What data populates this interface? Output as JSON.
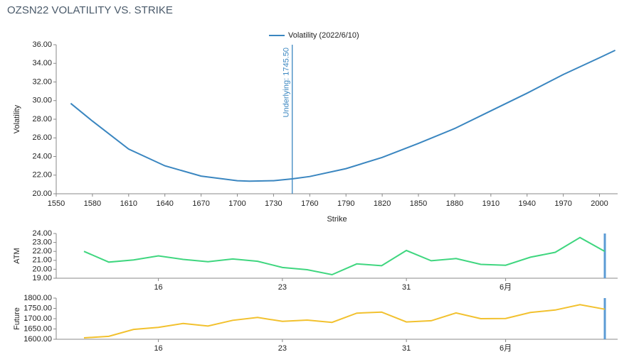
{
  "chart_data": [
    {
      "type": "line",
      "title": "OZSN22 VOLATILITY VS. STRIKE",
      "x_label": "Strike",
      "y_label": "Volatility",
      "x": [
        1562,
        1580,
        1610,
        1640,
        1670,
        1700,
        1710,
        1730,
        1745.5,
        1760,
        1790,
        1820,
        1850,
        1880,
        1910,
        1940,
        1970,
        2000,
        2013
      ],
      "series": [
        {
          "name": "Volatility (2022/6/10)",
          "color": "#3a86c0",
          "values": [
            29.7,
            27.8,
            24.8,
            23.0,
            21.9,
            21.4,
            21.35,
            21.4,
            21.6,
            21.85,
            22.7,
            23.9,
            25.4,
            27.0,
            28.9,
            30.8,
            32.8,
            34.6,
            35.4
          ]
        }
      ],
      "underlying": 1745.5,
      "underlying_label": "Underlying: 1745.50",
      "xlim": [
        1550,
        2015
      ],
      "xticks": [
        1550,
        1580,
        1610,
        1640,
        1670,
        1700,
        1730,
        1760,
        1790,
        1820,
        1850,
        1880,
        1910,
        1940,
        1970,
        2000
      ],
      "ylim": [
        20,
        36
      ],
      "yticks": [
        {
          "value": 20,
          "label": "20.00"
        },
        {
          "value": 22,
          "label": "22.00"
        },
        {
          "value": 24,
          "label": "24.00"
        },
        {
          "value": 26,
          "label": "26.00"
        },
        {
          "value": 28,
          "label": "28.00"
        },
        {
          "value": 30,
          "label": "30.00"
        },
        {
          "value": 32,
          "label": "32.00"
        },
        {
          "value": 34,
          "label": "34.00"
        },
        {
          "value": 36,
          "label": "36.00"
        }
      ],
      "legend": "top"
    },
    {
      "type": "line",
      "y_label": "ATM",
      "categories": [
        null,
        null,
        null,
        "16",
        null,
        null,
        null,
        null,
        "23",
        null,
        null,
        null,
        null,
        "31",
        null,
        null,
        null,
        "6月",
        null,
        null,
        null,
        null
      ],
      "series": [
        {
          "name": "ATM",
          "color": "#3fd67f",
          "values": [
            22.0,
            20.8,
            21.05,
            21.5,
            21.1,
            20.85,
            21.15,
            20.9,
            20.2,
            19.95,
            19.4,
            20.6,
            20.4,
            22.1,
            20.95,
            21.2,
            20.55,
            20.45,
            21.35,
            21.9,
            23.55,
            22.0
          ]
        }
      ],
      "ylim": [
        19,
        24
      ],
      "yticks": [
        {
          "value": 19,
          "label": "19.00"
        },
        {
          "value": 20,
          "label": "20.00"
        },
        {
          "value": 21,
          "label": "21.00"
        },
        {
          "value": 22,
          "label": "22.00"
        },
        {
          "value": 23,
          "label": "23.00"
        },
        {
          "value": 24,
          "label": "24.00"
        }
      ]
    },
    {
      "type": "line",
      "y_label": "Future",
      "categories": [
        null,
        null,
        null,
        "16",
        null,
        null,
        null,
        null,
        "23",
        null,
        null,
        null,
        null,
        "31",
        null,
        null,
        null,
        "6月",
        null,
        null,
        null,
        null
      ],
      "series": [
        {
          "name": "Future",
          "color": "#f2c12e",
          "values": [
            1607,
            1614,
            1648,
            1658,
            1677,
            1664,
            1692,
            1706,
            1687,
            1693,
            1682,
            1727,
            1732,
            1684,
            1690,
            1728,
            1700,
            1701,
            1730,
            1742,
            1768,
            1746
          ]
        }
      ],
      "ylim": [
        1600,
        1800
      ],
      "yticks": [
        {
          "value": 1600,
          "label": "1600.00"
        },
        {
          "value": 1650,
          "label": "1650.00"
        },
        {
          "value": 1700,
          "label": "1700.00"
        },
        {
          "value": 1750,
          "label": "1750.00"
        },
        {
          "value": 1800,
          "label": "1800.00"
        }
      ]
    }
  ]
}
